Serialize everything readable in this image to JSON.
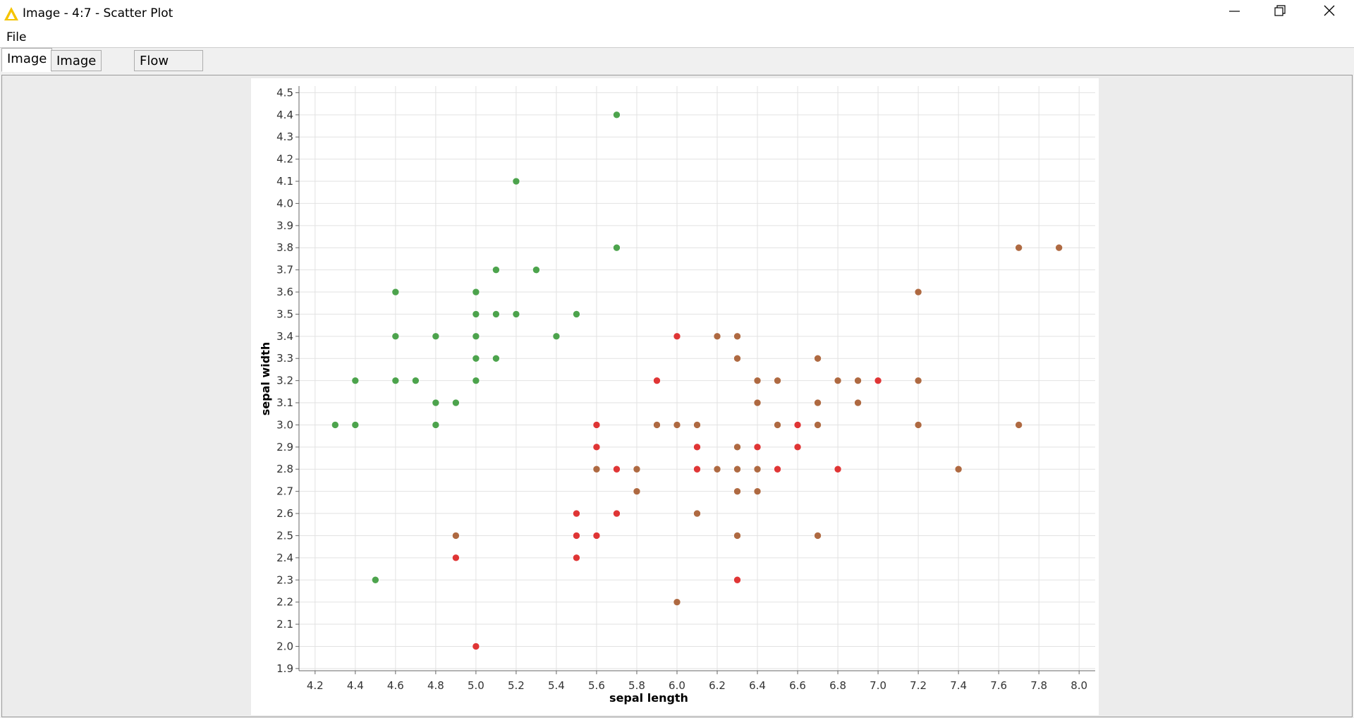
{
  "window": {
    "title": "Image - 4:7 - Scatter Plot",
    "menu": [
      "File"
    ],
    "tabs": [
      "Image",
      "Image Spec",
      "Flow Variables"
    ]
  },
  "chart_data": {
    "type": "scatter",
    "x_label": "sepal length",
    "y_label": "sepal width",
    "xlim": [
      4.12,
      8.08
    ],
    "ylim": [
      1.89,
      4.53
    ],
    "grid": true,
    "xticks": [
      4.2,
      4.4,
      4.6,
      4.8,
      {
        "value": 5,
        "label": "5.0"
      },
      5.2,
      5.4,
      5.6,
      5.8,
      {
        "value": 6,
        "label": "6.0"
      },
      6.2,
      6.4,
      6.6,
      6.8,
      {
        "value": 7,
        "label": "7.0"
      },
      7.2,
      7.4,
      7.6,
      7.8,
      {
        "value": 8,
        "label": "8.0"
      }
    ],
    "yticks": [
      1.9,
      {
        "value": 2,
        "label": "2.0"
      },
      2.1,
      2.2,
      2.3,
      2.4,
      2.5,
      2.6,
      2.7,
      2.8,
      2.9,
      {
        "value": 3,
        "label": "3.0"
      },
      3.1,
      3.2,
      3.3,
      3.4,
      3.5,
      3.6,
      3.7,
      3.8,
      3.9,
      {
        "value": 4,
        "label": "4.0"
      },
      4.1,
      4.2,
      4.3,
      4.4,
      4.5
    ],
    "series": [
      {
        "color": "#3a9a3a",
        "x": [
          5.7,
          5.2,
          5.7,
          5.1,
          5.3,
          4.6,
          5.0,
          5.0,
          5.1,
          5.2,
          5.5,
          4.6,
          4.8,
          5.0,
          5.4,
          5.0,
          5.1,
          4.4,
          4.6,
          4.7,
          5.0,
          4.8,
          4.9,
          4.3,
          4.4,
          4.8,
          4.5
        ],
        "values": [
          4.4,
          4.1,
          3.8,
          3.7,
          3.7,
          3.6,
          3.6,
          3.5,
          3.5,
          3.5,
          3.5,
          3.4,
          3.4,
          3.4,
          3.4,
          3.3,
          3.3,
          3.2,
          3.2,
          3.2,
          3.2,
          3.1,
          3.1,
          3.0,
          3.0,
          3.0,
          2.3
        ]
      },
      {
        "color": "#dd2020",
        "x": [
          6.0,
          5.9,
          7.0,
          5.6,
          6.6,
          5.6,
          6.1,
          6.4,
          6.6,
          5.7,
          6.1,
          6.5,
          6.8,
          5.5,
          5.7,
          5.5,
          5.6,
          4.9,
          5.5,
          6.3,
          5.0
        ],
        "values": [
          3.4,
          3.2,
          3.2,
          3.0,
          3.0,
          2.9,
          2.9,
          2.9,
          2.9,
          2.8,
          2.8,
          2.8,
          2.8,
          2.6,
          2.6,
          2.5,
          2.5,
          2.4,
          2.4,
          2.3,
          2.0
        ]
      },
      {
        "color": "#a65a2e",
        "x": [
          7.7,
          7.9,
          7.2,
          6.2,
          6.3,
          6.3,
          6.7,
          6.4,
          6.5,
          6.8,
          6.9,
          7.2,
          6.4,
          6.7,
          6.9,
          5.9,
          6.0,
          6.1,
          6.5,
          6.7,
          7.2,
          7.7,
          6.3,
          5.6,
          5.8,
          6.2,
          6.3,
          6.4,
          7.4,
          5.8,
          6.3,
          6.4,
          6.1,
          4.9,
          6.3,
          6.7,
          6.0
        ],
        "values": [
          3.8,
          3.8,
          3.6,
          3.4,
          3.4,
          3.3,
          3.3,
          3.2,
          3.2,
          3.2,
          3.2,
          3.2,
          3.1,
          3.1,
          3.1,
          3.0,
          3.0,
          3.0,
          3.0,
          3.0,
          3.0,
          3.0,
          2.9,
          2.8,
          2.8,
          2.8,
          2.8,
          2.8,
          2.8,
          2.7,
          2.7,
          2.7,
          2.6,
          2.5,
          2.5,
          2.5,
          2.2
        ]
      }
    ]
  }
}
